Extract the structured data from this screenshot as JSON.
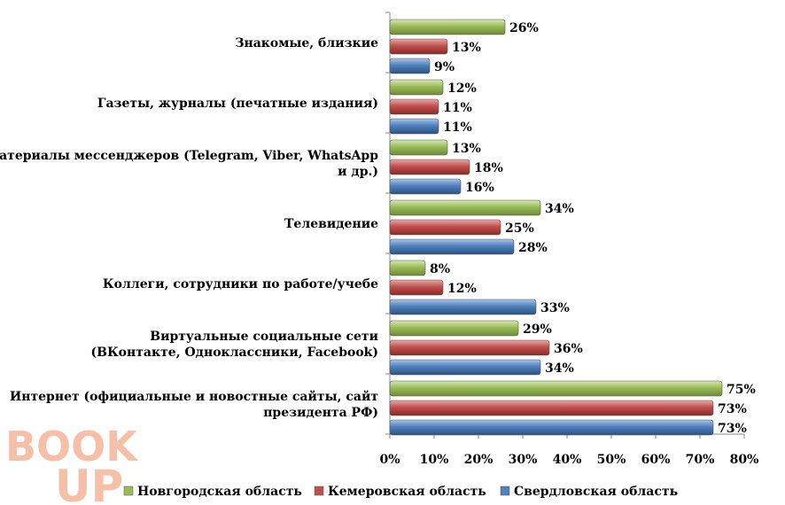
{
  "chart_data": {
    "type": "bar",
    "orientation": "horizontal",
    "categories": [
      "Знакомые, близкие",
      "Газеты, журналы (печатные издания)",
      "Материалы мессенджеров (Telegram, Viber, WhatsApp и др.)",
      "Телевидение",
      "Коллеги, сотрудники по работе/учебе",
      "Виртуальные социальные сети (ВКонтакте, Одноклассники, Facebook)",
      "Интернет (официальные и новостные сайты, сайт президента РФ)"
    ],
    "category_lines": [
      [
        "Знакомые, близкие"
      ],
      [
        "Газеты, журналы (печатные издания)"
      ],
      [
        "Материалы мессенджеров (Telegram, Viber, WhatsApp",
        "и др.)"
      ],
      [
        "Телевидение"
      ],
      [
        "Коллеги, сотрудники по работе/учебе"
      ],
      [
        "Виртуальные социальные сети",
        "(ВКонтакте, Одноклассники, Facebook)"
      ],
      [
        "Интернет (официальные и новостные сайты, сайт",
        "президента РФ)"
      ]
    ],
    "series": [
      {
        "name": "Новгородская область",
        "color": "#9bbb59",
        "values": [
          26,
          12,
          13,
          34,
          8,
          29,
          75
        ]
      },
      {
        "name": "Кемеровская область",
        "color": "#c0504d",
        "values": [
          13,
          11,
          18,
          25,
          12,
          36,
          73
        ]
      },
      {
        "name": "Свердловская область",
        "color": "#4f81bd",
        "values": [
          9,
          11,
          16,
          28,
          33,
          34,
          73
        ]
      }
    ],
    "value_suffix": "%",
    "xlim": [
      0,
      80
    ],
    "x_ticks": [
      0,
      10,
      20,
      30,
      40,
      50,
      60,
      70,
      80
    ],
    "x_tick_labels": [
      "0%",
      "10%",
      "20%",
      "30%",
      "40%",
      "50%",
      "60%",
      "70%",
      "80%"
    ],
    "grid": false,
    "legend_position": "bottom"
  },
  "watermark": {
    "line1": "BOOK",
    "line2": "UP",
    "color": "#f4b49a"
  }
}
